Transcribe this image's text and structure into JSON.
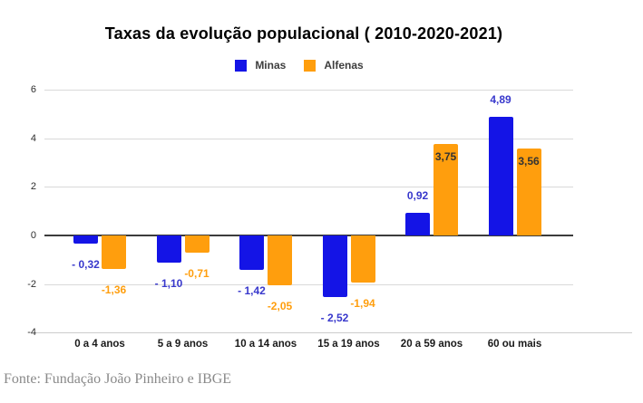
{
  "header": {
    "title": "Taxas da evolução populacional ( 2010-2020-2021)"
  },
  "legend": {
    "items": [
      {
        "label": "Minas",
        "color": "#1414e6"
      },
      {
        "label": "Alfenas",
        "color": "#ff9e0d"
      }
    ]
  },
  "footer": {
    "source": "Fonte: Fundação João Pinheiro e IBGE"
  },
  "chart_data": {
    "type": "bar",
    "title": "Taxas da evolução populacional ( 2010-2020-2021)",
    "categories": [
      "0 a 4 anos",
      "5 a 9 anos",
      "10 a 14 anos",
      "15 a 19 anos",
      "20 a 59 anos",
      "60 ou mais"
    ],
    "series": [
      {
        "name": "Minas",
        "color": "#1414e6",
        "values": [
          -0.32,
          -1.1,
          -1.42,
          -2.52,
          0.92,
          4.89
        ],
        "data_labels": [
          "- 0,32",
          "- 1,10",
          "- 1,42",
          "- 2,52",
          "0,92",
          "4,89"
        ],
        "label_color": "#3838cc",
        "positive_label_color": "#3838cc",
        "positive_label_placement": "above"
      },
      {
        "name": "Alfenas",
        "color": "#ff9e0d",
        "values": [
          -1.36,
          -0.71,
          -2.05,
          -1.94,
          3.75,
          3.56
        ],
        "data_labels": [
          "-1,36",
          "-0,71",
          "-2,05",
          "-1,94",
          "3,75",
          "3,56"
        ],
        "label_color": "#ff9e0d",
        "positive_label_color": "#333333",
        "positive_label_placement": "inside"
      }
    ],
    "y_ticks": [
      6,
      4,
      2,
      0,
      -2,
      -4
    ],
    "ylim": [
      -4,
      6
    ],
    "grid": true,
    "legend_position": "top",
    "xlabel": "",
    "ylabel": ""
  }
}
